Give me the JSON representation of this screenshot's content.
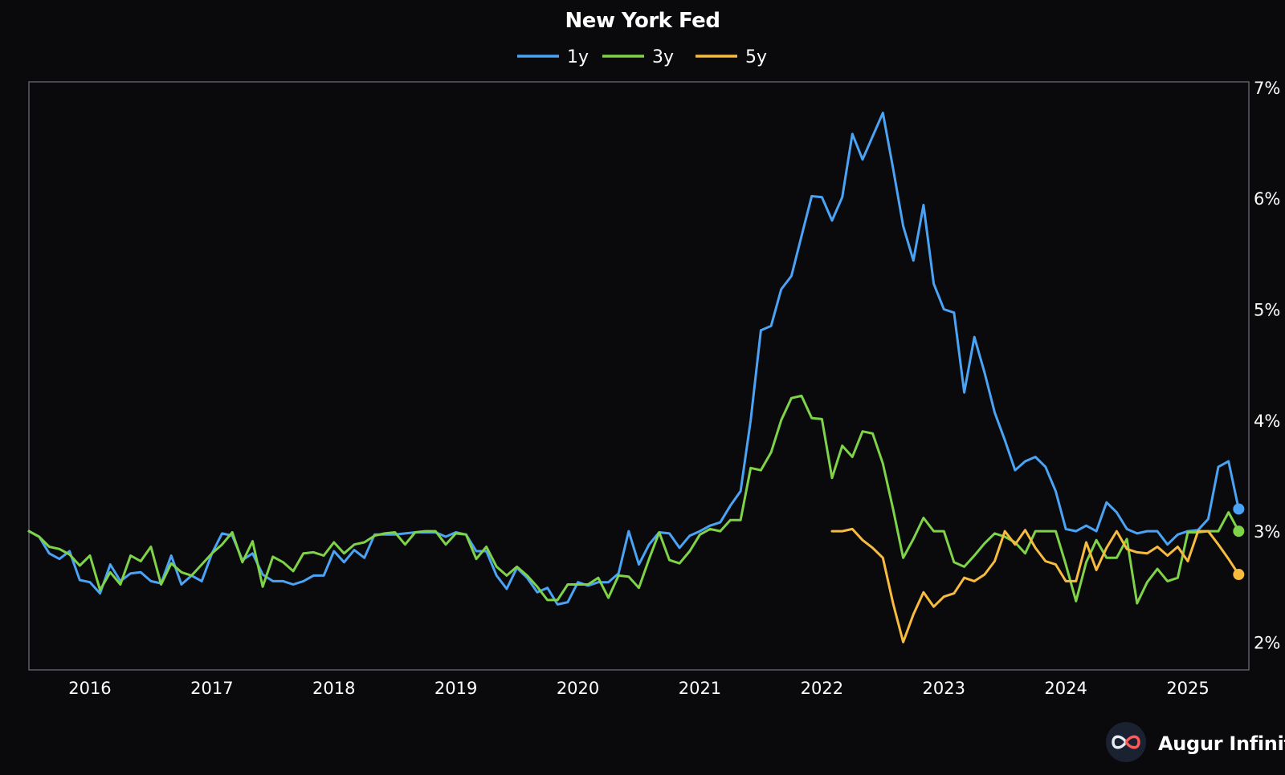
{
  "brand": {
    "name": "Augur Infinity",
    "logo_icon": "infinity-logo-icon"
  },
  "colors": {
    "background": "#0a0a0c",
    "frame": "#5a5e66",
    "1y": "#4aa3f5",
    "3y": "#7ed348",
    "5y": "#f7bb3f"
  },
  "chart_data": {
    "type": "line",
    "title": "New York Fed",
    "legend_position": "top-center",
    "grid": false,
    "y_axis_position": "right",
    "xlim": [
      "2015-07",
      "2025-07"
    ],
    "ylim": [
      1.75,
      7.05
    ],
    "x_ticks": [
      "2016",
      "2017",
      "2018",
      "2019",
      "2020",
      "2021",
      "2022",
      "2023",
      "2024",
      "2025"
    ],
    "y_ticks": [
      "2%",
      "3%",
      "4%",
      "5%",
      "6%",
      "7%"
    ],
    "start": "2015-07",
    "series": [
      {
        "name": "1y",
        "color": "#4aa3f5",
        "start": "2015-07",
        "values": [
          3.0,
          2.95,
          2.8,
          2.75,
          2.82,
          2.56,
          2.54,
          2.44,
          2.7,
          2.55,
          2.62,
          2.63,
          2.55,
          2.53,
          2.78,
          2.52,
          2.6,
          2.55,
          2.8,
          2.98,
          2.96,
          2.74,
          2.8,
          2.61,
          2.55,
          2.55,
          2.52,
          2.55,
          2.6,
          2.6,
          2.82,
          2.72,
          2.83,
          2.76,
          2.97,
          2.97,
          2.97,
          2.98,
          2.99,
          2.99,
          2.99,
          2.95,
          2.99,
          2.97,
          2.82,
          2.82,
          2.6,
          2.48,
          2.67,
          2.58,
          2.45,
          2.49,
          2.34,
          2.36,
          2.54,
          2.51,
          2.54,
          2.54,
          2.62,
          3.0,
          2.7,
          2.88,
          2.99,
          2.98,
          2.85,
          2.96,
          3.0,
          3.05,
          3.08,
          3.23,
          3.36,
          4.0,
          4.81,
          4.85,
          5.18,
          5.3,
          5.66,
          6.02,
          6.01,
          5.8,
          6.01,
          6.58,
          6.35,
          6.56,
          6.77,
          6.27,
          5.75,
          5.44,
          5.94,
          5.23,
          5.0,
          4.97,
          4.25,
          4.75,
          4.43,
          4.07,
          3.82,
          3.55,
          3.63,
          3.67,
          3.58,
          3.36,
          3.02,
          3.0,
          3.05,
          3.0,
          3.26,
          3.17,
          3.02,
          2.98,
          3.0,
          3.0,
          2.88,
          2.97,
          3.0,
          3.01,
          3.11,
          3.58,
          3.63,
          3.2
        ]
      },
      {
        "name": "3y",
        "color": "#7ed348",
        "start": "2015-07",
        "values": [
          3.0,
          2.95,
          2.86,
          2.84,
          2.79,
          2.69,
          2.78,
          2.47,
          2.63,
          2.52,
          2.78,
          2.73,
          2.86,
          2.52,
          2.71,
          2.63,
          2.6,
          2.7,
          2.8,
          2.88,
          2.99,
          2.72,
          2.91,
          2.5,
          2.77,
          2.72,
          2.64,
          2.8,
          2.81,
          2.78,
          2.9,
          2.8,
          2.88,
          2.9,
          2.96,
          2.98,
          2.99,
          2.88,
          2.99,
          3.0,
          3.0,
          2.88,
          2.98,
          2.97,
          2.75,
          2.86,
          2.68,
          2.6,
          2.68,
          2.6,
          2.5,
          2.38,
          2.38,
          2.52,
          2.52,
          2.52,
          2.58,
          2.4,
          2.6,
          2.59,
          2.49,
          2.75,
          2.99,
          2.74,
          2.71,
          2.82,
          2.97,
          3.02,
          3.0,
          3.1,
          3.1,
          3.57,
          3.55,
          3.71,
          4.0,
          4.2,
          4.22,
          4.02,
          4.01,
          3.48,
          3.77,
          3.67,
          3.9,
          3.88,
          3.61,
          3.2,
          2.76,
          2.93,
          3.12,
          3.0,
          3.0,
          2.72,
          2.68,
          2.78,
          2.89,
          2.98,
          2.95,
          2.9,
          2.8,
          3.0,
          3.0,
          3.0,
          2.7,
          2.37,
          2.72,
          2.92,
          2.76,
          2.76,
          2.93,
          2.35,
          2.54,
          2.66,
          2.55,
          2.58,
          2.99,
          2.99,
          3.0,
          3.0,
          3.17,
          3.0
        ]
      },
      {
        "name": "5y",
        "color": "#f7bb3f",
        "start": "2022-02",
        "values": [
          3.0,
          3.0,
          3.02,
          2.92,
          2.85,
          2.76,
          2.35,
          2.0,
          2.25,
          2.45,
          2.32,
          2.41,
          2.44,
          2.58,
          2.55,
          2.61,
          2.73,
          3.0,
          2.88,
          3.01,
          2.85,
          2.73,
          2.7,
          2.55,
          2.55,
          2.9,
          2.65,
          2.85,
          3.0,
          2.84,
          2.81,
          2.8,
          2.86,
          2.78,
          2.86,
          2.73,
          3.0,
          3.0,
          2.88,
          2.75,
          2.61
        ]
      }
    ]
  }
}
